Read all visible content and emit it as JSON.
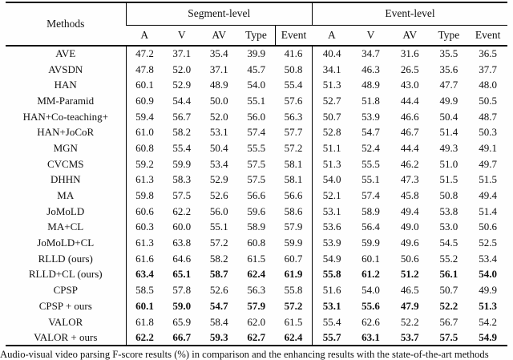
{
  "table": {
    "header": {
      "methods_label": "Methods",
      "segment_group_label": "Segment-level",
      "event_group_label": "Event-level",
      "sub_columns": [
        "A",
        "V",
        "AV",
        "Type",
        "Event",
        "A",
        "V",
        "AV",
        "Type",
        "Event"
      ]
    },
    "rows": [
      {
        "method": "AVE",
        "bold": false,
        "sep": false,
        "values": [
          "47.2",
          "37.1",
          "35.4",
          "39.9",
          "41.6",
          "40.4",
          "34.7",
          "31.6",
          "35.5",
          "36.5"
        ]
      },
      {
        "method": "AVSDN",
        "bold": false,
        "sep": false,
        "values": [
          "47.8",
          "52.0",
          "37.1",
          "45.7",
          "50.8",
          "34.1",
          "46.3",
          "26.5",
          "35.6",
          "37.7"
        ]
      },
      {
        "method": "HAN",
        "bold": false,
        "sep": false,
        "values": [
          "60.1",
          "52.9",
          "48.9",
          "54.0",
          "55.4",
          "51.3",
          "48.9",
          "43.0",
          "47.7",
          "48.0"
        ]
      },
      {
        "method": "MM-Paramid",
        "bold": false,
        "sep": false,
        "values": [
          "60.9",
          "54.4",
          "50.0",
          "55.1",
          "57.6",
          "52.7",
          "51.8",
          "44.4",
          "49.9",
          "50.5"
        ]
      },
      {
        "method": "HAN+Co-teaching+",
        "bold": false,
        "sep": false,
        "values": [
          "59.4",
          "56.7",
          "52.0",
          "56.0",
          "56.3",
          "50.7",
          "53.9",
          "46.6",
          "50.4",
          "48.7"
        ]
      },
      {
        "method": "HAN+JoCoR",
        "bold": false,
        "sep": false,
        "values": [
          "61.0",
          "58.2",
          "53.1",
          "57.4",
          "57.7",
          "52.8",
          "54.7",
          "46.7",
          "51.4",
          "50.3"
        ]
      },
      {
        "method": "MGN",
        "bold": false,
        "sep": false,
        "values": [
          "60.8",
          "55.4",
          "50.4",
          "55.5",
          "57.2",
          "51.1",
          "52.4",
          "44.4",
          "49.3",
          "49.1"
        ]
      },
      {
        "method": "CVCMS",
        "bold": false,
        "sep": false,
        "values": [
          "59.2",
          "59.9",
          "53.4",
          "57.5",
          "58.1",
          "51.3",
          "55.5",
          "46.2",
          "51.0",
          "49.7"
        ]
      },
      {
        "method": "DHHN",
        "bold": false,
        "sep": false,
        "values": [
          "61.3",
          "58.3",
          "52.9",
          "57.5",
          "58.1",
          "54.0",
          "55.1",
          "47.3",
          "51.5",
          "51.5"
        ]
      },
      {
        "method": "MA",
        "bold": false,
        "sep": true,
        "values": [
          "59.8",
          "57.5",
          "52.6",
          "56.6",
          "56.6",
          "52.1",
          "57.4",
          "45.8",
          "50.8",
          "49.4"
        ]
      },
      {
        "method": "JoMoLD",
        "bold": false,
        "sep": false,
        "values": [
          "60.6",
          "62.2",
          "56.0",
          "59.6",
          "58.6",
          "53.1",
          "58.9",
          "49.4",
          "53.8",
          "51.4"
        ]
      },
      {
        "method": "MA+CL",
        "bold": false,
        "sep": false,
        "values": [
          "60.3",
          "60.0",
          "55.1",
          "58.9",
          "57.9",
          "53.6",
          "56.4",
          "49.0",
          "53.0",
          "50.6"
        ]
      },
      {
        "method": "JoMoLD+CL",
        "bold": false,
        "sep": false,
        "values": [
          "61.3",
          "63.8",
          "57.2",
          "60.8",
          "59.9",
          "53.9",
          "59.9",
          "49.6",
          "54.5",
          "52.5"
        ]
      },
      {
        "method": "RLLD (ours)",
        "bold": false,
        "sep": true,
        "values": [
          "61.6",
          "64.6",
          "58.2",
          "61.5",
          "60.7",
          "54.9",
          "60.1",
          "50.6",
          "55.2",
          "53.4"
        ]
      },
      {
        "method": "RLLD+CL (ours)",
        "bold": true,
        "sep": false,
        "values": [
          "63.4",
          "65.1",
          "58.7",
          "62.4",
          "61.9",
          "55.8",
          "61.2",
          "51.2",
          "56.1",
          "54.0"
        ]
      },
      {
        "method": "CPSP",
        "bold": false,
        "sep": true,
        "values": [
          "58.5",
          "57.8",
          "52.6",
          "56.3",
          "55.8",
          "51.6",
          "54.0",
          "46.5",
          "50.7",
          "49.9"
        ]
      },
      {
        "method": "CPSP + ours",
        "bold": true,
        "sep": false,
        "values": [
          "60.1",
          "59.0",
          "54.7",
          "57.9",
          "57.2",
          "53.1",
          "55.6",
          "47.9",
          "52.2",
          "51.3"
        ]
      },
      {
        "method": "VALOR",
        "bold": false,
        "sep": true,
        "values": [
          "61.8",
          "65.9",
          "58.4",
          "62.0",
          "61.5",
          "55.4",
          "62.6",
          "52.2",
          "56.7",
          "54.2"
        ]
      },
      {
        "method": "VALOR + ours",
        "bold": true,
        "sep": false,
        "values": [
          "62.2",
          "66.7",
          "59.3",
          "62.7",
          "62.4",
          "55.7",
          "63.1",
          "53.7",
          "57.5",
          "54.9"
        ]
      }
    ]
  },
  "caption": "Audio-visual video parsing F-score results (%) in comparison and the enhancing results with the state-of-the-art methods"
}
